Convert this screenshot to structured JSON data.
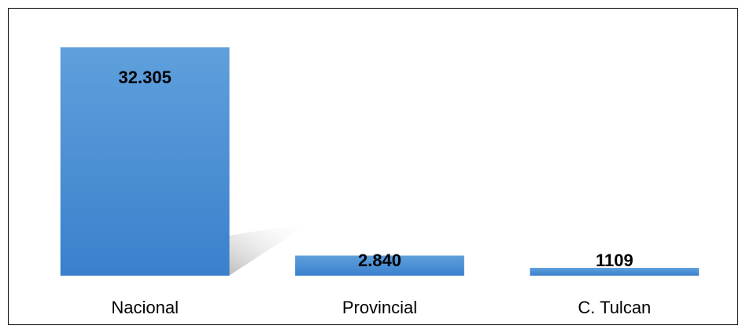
{
  "chart_data": {
    "type": "bar",
    "categories": [
      "Nacional",
      "Provincial",
      "C. Tulcan"
    ],
    "values": [
      32305,
      2840,
      1109
    ],
    "value_labels": [
      "32.305",
      "2.840",
      "1109"
    ],
    "color": "#4a8fd6",
    "ylim": [
      0,
      35000
    ]
  }
}
